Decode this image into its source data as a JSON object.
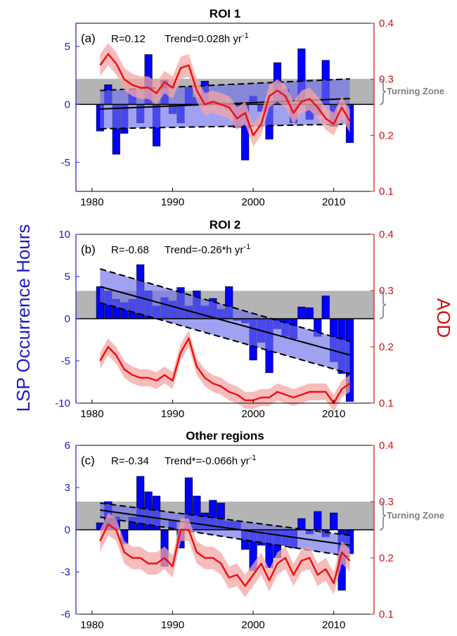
{
  "figure": {
    "left_axis_label": "LSP Occurrence Hours",
    "right_axis_label": "AOD",
    "colors": {
      "bars": "#0000ff",
      "aod_line": "#ee1111",
      "aod_band": "#f4a6a6",
      "trend_band": "#6e6eea",
      "turning_zone": "#b4b4b4",
      "left_axis": "#1a1acc",
      "right_axis": "#cc1111"
    }
  },
  "chart_data": [
    {
      "type": "bar",
      "panel": "(a)",
      "title": "ROI 1",
      "annotation_r": "R=0.12",
      "annotation_trend_prefix": "Trend=0.028h yr",
      "annotation_trend_sup": "-1",
      "turning_zone_label": "Turning Zone",
      "turning_zone": [
        0,
        2.2
      ],
      "xlim": [
        1978,
        2015
      ],
      "xticks": [
        "1980",
        "1990",
        "2000",
        "2010"
      ],
      "ylim": [
        -7.5,
        7
      ],
      "yticks": [
        "-5",
        "0",
        "5"
      ],
      "y2lim": [
        0.1,
        0.4
      ],
      "y2ticks": [
        "0.1",
        "0.2",
        "0.3",
        "0.4"
      ],
      "years": [
        1981,
        1982,
        1983,
        1984,
        1985,
        1986,
        1987,
        1988,
        1989,
        1990,
        1991,
        1992,
        1993,
        1994,
        1995,
        1996,
        1997,
        1998,
        1999,
        2000,
        2001,
        2002,
        2003,
        2004,
        2005,
        2006,
        2007,
        2008,
        2009,
        2010,
        2011,
        2012
      ],
      "values": [
        -2.3,
        1.7,
        -4.3,
        -2.5,
        1.3,
        -1.6,
        4.3,
        -3.6,
        2.1,
        -0.8,
        -1.6,
        1.5,
        0.6,
        2.0,
        0.3,
        0.2,
        -0.4,
        -2.0,
        -4.8,
        0.7,
        -0.6,
        -3.0,
        3.6,
        1.3,
        -1.6,
        4.8,
        -1.3,
        -0.9,
        3.8,
        -1.9,
        0.2,
        -3.3
      ],
      "trend": {
        "line": [
          -0.4,
          0.5
        ],
        "upper": [
          1.2,
          2.2
        ],
        "lower": [
          -2.1,
          -1.7
        ]
      },
      "aod": {
        "years": [
          1981,
          1982,
          1983,
          1984,
          1985,
          1986,
          1987,
          1988,
          1989,
          1990,
          1991,
          1992,
          1993,
          1994,
          1995,
          1996,
          1997,
          1998,
          1999,
          2000,
          2001,
          2002,
          2003,
          2004,
          2005,
          2006,
          2007,
          2008,
          2009,
          2010,
          2011,
          2012
        ],
        "values": [
          0.325,
          0.345,
          0.328,
          0.3,
          0.29,
          0.285,
          0.285,
          0.275,
          0.295,
          0.285,
          0.32,
          0.325,
          0.28,
          0.255,
          0.26,
          0.255,
          0.25,
          0.23,
          0.24,
          0.2,
          0.22,
          0.27,
          0.28,
          0.27,
          0.24,
          0.26,
          0.265,
          0.25,
          0.23,
          0.22,
          0.25,
          0.225
        ],
        "band": 0.02
      }
    },
    {
      "type": "bar",
      "panel": "(b)",
      "title": "ROI 2",
      "annotation_r": "R=-0.68",
      "annotation_trend_prefix": "Trend=-0.26*h yr",
      "annotation_trend_sup": "-1",
      "turning_zone_label": "",
      "turning_zone": [
        0,
        3.3
      ],
      "xlim": [
        1978,
        2015
      ],
      "xticks": [
        "1980",
        "1990",
        "2000",
        "2010"
      ],
      "ylim": [
        -10,
        10
      ],
      "yticks": [
        "-10",
        "-5",
        "0",
        "5",
        "10"
      ],
      "y2lim": [
        0.1,
        0.4
      ],
      "y2ticks": [
        "0.1",
        "0.2",
        "0.3",
        "0.4"
      ],
      "years": [
        1981,
        1982,
        1983,
        1984,
        1985,
        1986,
        1987,
        1988,
        1989,
        1990,
        1991,
        1992,
        1993,
        1994,
        1995,
        1996,
        1997,
        1998,
        1999,
        2000,
        2001,
        2002,
        2003,
        2004,
        2005,
        2006,
        2007,
        2008,
        2009,
        2010,
        2011,
        2012
      ],
      "values": [
        3.8,
        3.3,
        2.3,
        1.9,
        2.3,
        6.4,
        3.3,
        1.5,
        2.5,
        2.1,
        3.7,
        1.5,
        3.3,
        1.5,
        2.4,
        1.1,
        3.8,
        -0.2,
        -0.5,
        -4.9,
        -2.8,
        -6.4,
        -1.2,
        -2.1,
        -2.4,
        1.4,
        1.3,
        -2.1,
        2.7,
        -5.1,
        -6.5,
        -9.8
      ],
      "trend": {
        "line": [
          3.8,
          -4.3
        ],
        "upper": [
          5.9,
          -2.7
        ],
        "lower": [
          1.9,
          -6.5
        ]
      },
      "aod": {
        "years": [
          1981,
          1982,
          1983,
          1984,
          1985,
          1986,
          1987,
          1988,
          1989,
          1990,
          1991,
          1992,
          1993,
          1994,
          1995,
          1996,
          1997,
          1998,
          1999,
          2000,
          2001,
          2002,
          2003,
          2004,
          2005,
          2006,
          2007,
          2008,
          2009,
          2010,
          2011,
          2012
        ],
        "values": [
          0.175,
          0.2,
          0.185,
          0.16,
          0.15,
          0.145,
          0.145,
          0.14,
          0.15,
          0.14,
          0.19,
          0.215,
          0.165,
          0.145,
          0.135,
          0.13,
          0.12,
          0.115,
          0.105,
          0.105,
          0.11,
          0.11,
          0.12,
          0.115,
          0.11,
          0.115,
          0.12,
          0.12,
          0.12,
          0.1,
          0.125,
          0.135
        ],
        "band": 0.015
      }
    },
    {
      "type": "bar",
      "panel": "(c)",
      "title": "Other regions",
      "annotation_r": "R=-0.34",
      "annotation_trend_prefix": "Trend*=-0.066h yr",
      "annotation_trend_sup": "-1",
      "turning_zone_label": "Turning Zone",
      "turning_zone": [
        0,
        2.0
      ],
      "xlim": [
        1978,
        2015
      ],
      "xticks": [
        "1980",
        "1990",
        "2000",
        "2010"
      ],
      "ylim": [
        -6,
        6
      ],
      "yticks": [
        "-6",
        "-3",
        "0",
        "3",
        "6"
      ],
      "y2lim": [
        0.1,
        0.4
      ],
      "y2ticks": [
        "0.1",
        "0.2",
        "0.3",
        "0.4"
      ],
      "years": [
        1981,
        1982,
        1983,
        1984,
        1985,
        1986,
        1987,
        1988,
        1989,
        1990,
        1991,
        1992,
        1993,
        1994,
        1995,
        1996,
        1997,
        1998,
        1999,
        2000,
        2001,
        2002,
        2003,
        2004,
        2005,
        2006,
        2007,
        2008,
        2009,
        2010,
        2011,
        2012
      ],
      "values": [
        0.5,
        2.0,
        0.9,
        -1.0,
        0.9,
        3.8,
        2.7,
        2.4,
        -2.6,
        0.7,
        -1.3,
        3.7,
        2.4,
        1.2,
        2.1,
        1.9,
        0.6,
        0.6,
        -1.4,
        -2.9,
        -1.1,
        -2.7,
        -2.0,
        -1.1,
        -1.3,
        0.8,
        -0.3,
        1.3,
        -0.5,
        1.2,
        -4.3,
        -1.7
      ],
      "trend": {
        "line": [
          1.4,
          -1.1
        ],
        "upper": [
          1.9,
          -0.4
        ],
        "lower": [
          0.9,
          -1.9
        ]
      },
      "aod": {
        "years": [
          1981,
          1982,
          1983,
          1984,
          1985,
          1986,
          1987,
          1988,
          1989,
          1990,
          1991,
          1992,
          1993,
          1994,
          1995,
          1996,
          1997,
          1998,
          1999,
          2000,
          2001,
          2002,
          2003,
          2004,
          2005,
          2006,
          2007,
          2008,
          2009,
          2010,
          2011,
          2012
        ],
        "values": [
          0.23,
          0.26,
          0.25,
          0.21,
          0.2,
          0.2,
          0.19,
          0.19,
          0.2,
          0.185,
          0.25,
          0.25,
          0.21,
          0.2,
          0.2,
          0.19,
          0.165,
          0.17,
          0.15,
          0.17,
          0.19,
          0.16,
          0.19,
          0.2,
          0.17,
          0.195,
          0.2,
          0.17,
          0.18,
          0.155,
          0.21,
          0.195
        ],
        "band": 0.02
      }
    }
  ]
}
